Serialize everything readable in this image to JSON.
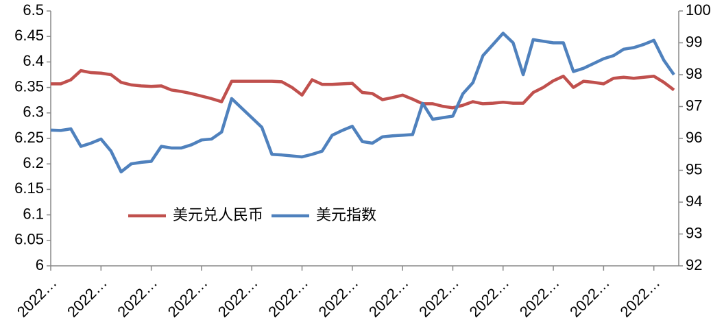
{
  "chart_data": {
    "type": "line",
    "categories": [
      "2022…",
      null,
      null,
      null,
      null,
      "2022…",
      null,
      null,
      null,
      null,
      "2022…",
      null,
      null,
      null,
      null,
      "2022…",
      null,
      null,
      null,
      null,
      "2022…",
      null,
      null,
      null,
      null,
      "2022…",
      null,
      null,
      null,
      null,
      "2022…",
      null,
      null,
      null,
      null,
      "2022…",
      null,
      null,
      null,
      null,
      "2022…",
      null,
      null,
      null,
      null,
      "2022…",
      null,
      null,
      null,
      null,
      "2022…",
      null,
      null,
      null,
      null,
      "2022…",
      null,
      null,
      null,
      null,
      "2022…",
      null,
      null
    ],
    "series": [
      {
        "name": "美元兑人民币",
        "color": "#c0504d",
        "axis": "y",
        "values": [
          6.357,
          6.357,
          6.365,
          6.383,
          6.379,
          6.378,
          6.375,
          6.36,
          6.355,
          6.353,
          6.352,
          6.353,
          6.345,
          6.342,
          6.338,
          6.333,
          6.328,
          6.322,
          6.362,
          6.362,
          6.362,
          6.362,
          6.362,
          6.361,
          6.35,
          6.335,
          6.365,
          6.356,
          6.356,
          6.357,
          6.358,
          6.34,
          6.338,
          6.326,
          6.33,
          6.335,
          6.327,
          6.318,
          6.318,
          6.313,
          6.31,
          6.315,
          6.322,
          6.318,
          6.319,
          6.321,
          6.319,
          6.319,
          6.34,
          6.35,
          6.363,
          6.372,
          6.35,
          6.362,
          6.36,
          6.357,
          6.368,
          6.37,
          6.368,
          6.37,
          6.372,
          6.36,
          6.345
        ]
      },
      {
        "name": "美元指数",
        "color": "#4f81bd",
        "axis": "y2",
        "values": [
          96.26,
          96.25,
          96.3,
          95.75,
          95.85,
          95.98,
          95.6,
          94.95,
          95.2,
          95.25,
          95.28,
          95.75,
          95.7,
          95.7,
          95.8,
          95.95,
          95.98,
          96.2,
          97.25,
          96.95,
          96.65,
          96.35,
          95.5,
          95.48,
          95.45,
          95.42,
          95.5,
          95.6,
          96.1,
          96.25,
          96.38,
          95.9,
          95.85,
          96.05,
          96.08,
          96.1,
          96.12,
          97.1,
          96.6,
          96.65,
          96.7,
          97.4,
          97.75,
          98.6,
          98.95,
          99.3,
          99.0,
          98.0,
          99.1,
          99.05,
          99.0,
          99.0,
          98.1,
          98.2,
          98.35,
          98.5,
          98.6,
          98.8,
          98.85,
          98.95,
          99.08,
          98.45,
          98.0
        ]
      }
    ],
    "ylim": [
      6,
      6.5
    ],
    "yticks": [
      6,
      6.05,
      6.1,
      6.15,
      6.2,
      6.25,
      6.3,
      6.35,
      6.4,
      6.45,
      6.5
    ],
    "y2lim": [
      92,
      100
    ],
    "y2ticks": [
      92,
      93,
      94,
      95,
      96,
      97,
      98,
      99,
      100
    ],
    "grid": false,
    "legend": "center"
  }
}
